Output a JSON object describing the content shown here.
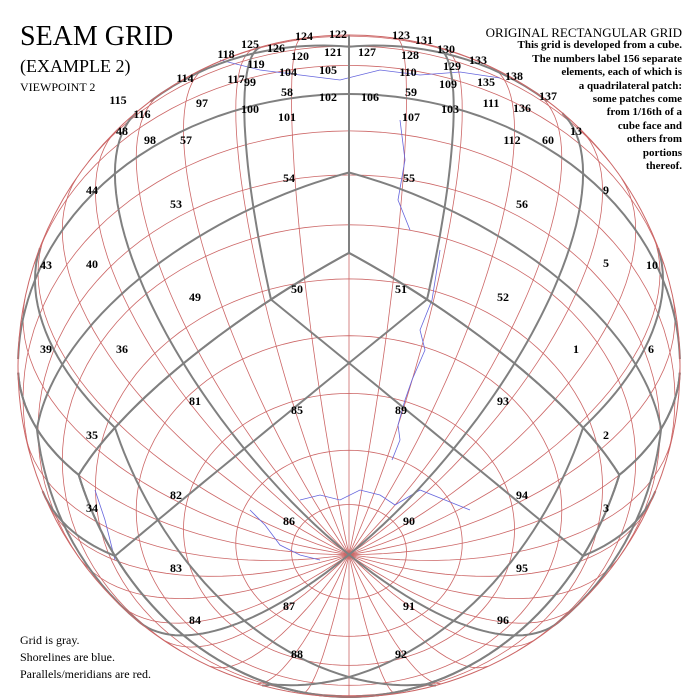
{
  "header": {
    "title": "SEAM GRID",
    "subtitle": "(EXAMPLE 2)",
    "viewpoint": "VIEWPOINT 2"
  },
  "description": {
    "heading": "ORIGINAL RECTANGULAR GRID",
    "lines": [
      "This grid is developed from a cube.",
      "The numbers label 156 separate",
      "elements, each of which is",
      "a quadrilateral patch:",
      "some patches come",
      "from 1/16th of a",
      "cube face and",
      "others from",
      "portions",
      "thereof."
    ]
  },
  "legend": {
    "lines": [
      "Grid is gray.",
      "Shorelines are blue.",
      "Parallels/meridians are red."
    ]
  },
  "colors": {
    "grid": "#808080",
    "shorelines": "#6666dd",
    "parallels_meridians": "#cc6666"
  },
  "cells": [
    "1",
    "2",
    "3",
    "5",
    "6",
    "9",
    "10",
    "13",
    "34",
    "35",
    "36",
    "39",
    "40",
    "43",
    "44",
    "48",
    "49",
    "50",
    "51",
    "52",
    "53",
    "54",
    "55",
    "56",
    "57",
    "58",
    "59",
    "60",
    "81",
    "82",
    "83",
    "84",
    "85",
    "86",
    "87",
    "88",
    "89",
    "90",
    "91",
    "92",
    "93",
    "94",
    "95",
    "96",
    "97",
    "98",
    "99",
    "100",
    "101",
    "102",
    "103",
    "104",
    "105",
    "106",
    "107",
    "109",
    "110",
    "111",
    "112",
    "115",
    "116",
    "117",
    "119",
    "120",
    "121",
    "122",
    "123",
    "124",
    "125",
    "126",
    "127",
    "128",
    "129",
    "130",
    "131",
    "135",
    "136",
    "137",
    "138",
    "118",
    "114",
    "133"
  ]
}
